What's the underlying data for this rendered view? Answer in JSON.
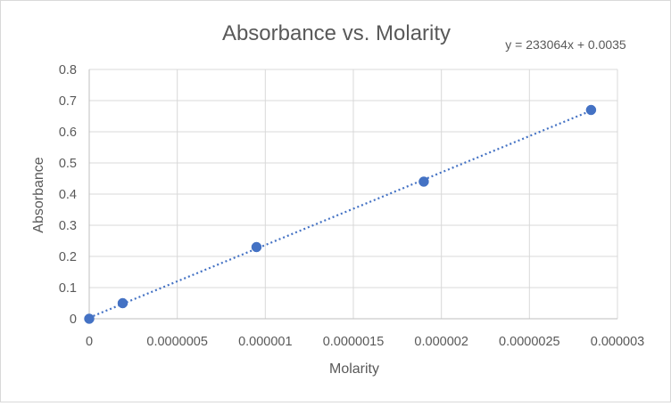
{
  "chart_data": {
    "type": "scatter",
    "title": "Absorbance vs. Molarity",
    "xlabel": "Molarity",
    "ylabel": "Absorbance",
    "xlim": [
      0,
      3e-06
    ],
    "ylim": [
      0,
      0.8
    ],
    "x_ticks": [
      0,
      5e-07,
      1e-06,
      1.5e-06,
      2e-06,
      2.5e-06,
      3e-06
    ],
    "x_tick_labels": [
      "0",
      "0.0000005",
      "0.000001",
      "0.0000015",
      "0.000002",
      "0.0000025",
      "0.000003"
    ],
    "y_ticks": [
      0,
      0.1,
      0.2,
      0.3,
      0.4,
      0.5,
      0.6,
      0.7,
      0.8
    ],
    "y_tick_labels": [
      "0",
      "0.1",
      "0.2",
      "0.3",
      "0.4",
      "0.5",
      "0.6",
      "0.7",
      "0.8"
    ],
    "grid": true,
    "series": [
      {
        "name": "Absorbance",
        "color": "#4472c4",
        "x": [
          0,
          1.9e-07,
          9.5e-07,
          1.9e-06,
          2.85e-06
        ],
        "y": [
          0,
          0.05,
          0.23,
          0.44,
          0.67
        ]
      }
    ],
    "trendline": {
      "type": "linear",
      "style": "dotted",
      "color": "#4472c4",
      "slope": 233064,
      "intercept": 0.0035,
      "x_range": [
        0,
        2.85e-06
      ],
      "equation_label": "y = 233064x + 0.0035",
      "label_placement": "top-right"
    }
  }
}
